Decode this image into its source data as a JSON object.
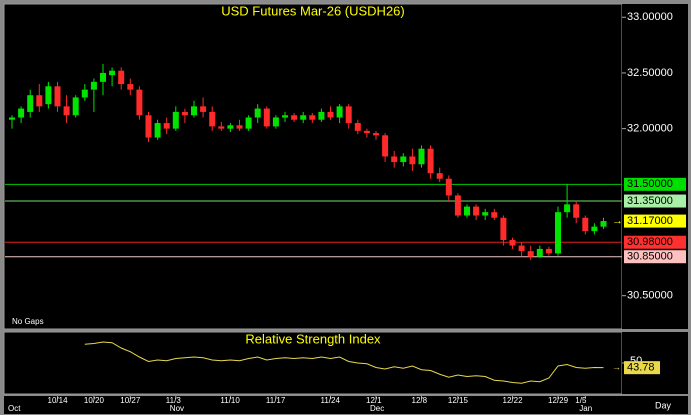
{
  "chart_data": {
    "type": "candlestick",
    "title": "USD Futures Mar-26 (USDH26)",
    "note": "No Gaps",
    "period": "Day",
    "categories": [
      null,
      null,
      null,
      null,
      null,
      "10/14",
      null,
      null,
      null,
      "10/20",
      null,
      null,
      null,
      "10/27",
      null,
      null,
      null,
      null,
      "11/3",
      null,
      null,
      null,
      null,
      null,
      "11/10",
      null,
      null,
      null,
      null,
      "11/17",
      null,
      null,
      null,
      null,
      null,
      "11/24",
      null,
      null,
      null,
      null,
      "12/1",
      null,
      null,
      null,
      null,
      "12/8",
      null,
      null,
      null,
      "12/15",
      null,
      null,
      null,
      null,
      null,
      "12/22",
      null,
      null,
      null,
      null,
      "12/29",
      null,
      null,
      "1/5",
      null,
      null
    ],
    "months": [
      "Oct",
      null,
      null,
      null,
      null,
      null,
      null,
      null,
      null,
      null,
      null,
      null,
      null,
      null,
      null,
      null,
      null,
      null,
      "Nov",
      null,
      null,
      null,
      null,
      null,
      null,
      null,
      null,
      null,
      null,
      null,
      null,
      null,
      null,
      null,
      null,
      null,
      null,
      null,
      null,
      null,
      "Dec",
      null,
      null,
      null,
      null,
      null,
      null,
      null,
      null,
      null,
      null,
      null,
      null,
      null,
      null,
      null,
      null,
      null,
      null,
      null,
      null,
      null,
      null,
      "Jan",
      null,
      null
    ],
    "open": [
      32.08,
      32.1,
      32.15,
      32.3,
      32.22,
      32.38,
      32.2,
      32.12,
      32.28,
      32.35,
      32.42,
      32.48,
      32.52,
      32.4,
      32.35,
      32.12,
      31.92,
      32.05,
      32.0,
      32.15,
      32.12,
      32.2,
      32.15,
      32.02,
      32.0,
      32.03,
      32.0,
      32.1,
      32.18,
      32.02,
      32.1,
      32.12,
      32.08,
      32.12,
      32.08,
      32.15,
      32.1,
      32.2,
      32.05,
      31.98,
      31.96,
      31.94,
      31.75,
      31.7,
      31.75,
      31.68,
      31.82,
      31.6,
      31.55,
      31.4,
      31.22,
      31.3,
      31.22,
      31.25,
      31.2,
      31.0,
      30.95,
      30.9,
      30.85,
      30.92,
      30.88,
      31.25,
      31.32,
      31.2,
      31.08,
      31.12
    ],
    "high": [
      32.12,
      32.2,
      32.35,
      32.4,
      32.42,
      32.42,
      32.3,
      32.3,
      32.4,
      32.45,
      32.58,
      32.55,
      32.55,
      32.45,
      32.38,
      32.15,
      32.08,
      32.1,
      32.2,
      32.18,
      32.25,
      32.28,
      32.2,
      32.06,
      32.05,
      32.08,
      32.12,
      32.22,
      32.2,
      32.12,
      32.15,
      32.14,
      32.15,
      32.14,
      32.18,
      32.2,
      32.22,
      32.22,
      32.08,
      32.0,
      31.98,
      31.96,
      31.8,
      31.78,
      31.82,
      31.85,
      31.85,
      31.65,
      31.58,
      31.42,
      31.32,
      31.32,
      31.28,
      31.28,
      31.22,
      31.02,
      30.98,
      30.95,
      30.95,
      30.94,
      31.3,
      31.5,
      31.35,
      31.22,
      31.15,
      31.2
    ],
    "low": [
      32.0,
      32.05,
      32.1,
      32.15,
      32.18,
      32.15,
      32.05,
      32.1,
      32.25,
      32.15,
      32.3,
      32.38,
      32.35,
      32.3,
      32.08,
      31.88,
      31.9,
      31.95,
      31.98,
      32.05,
      32.1,
      32.1,
      31.98,
      31.98,
      31.97,
      31.98,
      31.98,
      32.05,
      32.0,
      32.0,
      32.06,
      32.06,
      32.05,
      32.05,
      32.06,
      32.08,
      32.05,
      32.0,
      31.95,
      31.92,
      31.9,
      31.7,
      31.65,
      31.66,
      31.62,
      31.65,
      31.55,
      31.52,
      31.35,
      31.2,
      31.2,
      31.18,
      31.18,
      31.18,
      30.95,
      30.92,
      30.85,
      30.82,
      30.84,
      30.86,
      30.86,
      31.2,
      31.15,
      31.05,
      31.05,
      31.1
    ],
    "close": [
      32.1,
      32.18,
      32.3,
      32.2,
      32.38,
      32.2,
      32.12,
      32.28,
      32.35,
      32.42,
      32.5,
      32.52,
      32.4,
      32.35,
      32.12,
      31.92,
      32.05,
      32.0,
      32.15,
      32.12,
      32.2,
      32.15,
      32.02,
      32.0,
      32.03,
      32.0,
      32.1,
      32.18,
      32.02,
      32.1,
      32.12,
      32.08,
      32.12,
      32.08,
      32.15,
      32.1,
      32.2,
      32.05,
      31.98,
      31.96,
      31.94,
      31.75,
      31.7,
      31.75,
      31.68,
      31.82,
      31.6,
      31.55,
      31.4,
      31.22,
      31.3,
      31.22,
      31.25,
      31.2,
      31.0,
      30.95,
      30.9,
      30.85,
      30.92,
      30.88,
      31.25,
      31.32,
      31.2,
      31.08,
      31.12,
      31.17
    ],
    "up_color": "#00e400",
    "down_color": "#ff2a2a",
    "ylim": [
      30.21,
      33.11
    ],
    "yticks": [
      {
        "value": 33,
        "label": "33.00000"
      },
      {
        "value": 32.5,
        "label": "32.50000"
      },
      {
        "value": 32,
        "label": "32.00000"
      },
      {
        "value": 30.5,
        "label": "30.50000"
      }
    ],
    "levels": [
      {
        "value": 31.5,
        "label": "31.50000",
        "color": "#00c800",
        "label_color": "#00e000"
      },
      {
        "value": 31.35,
        "label": "31.35000",
        "color": "#6fe06f",
        "label_color": "#a8f0a8"
      },
      {
        "value": 30.98,
        "label": "30.98000",
        "color": "#e02020",
        "label_color": "#ff3030"
      },
      {
        "value": 30.85,
        "label": "30.85000",
        "color": "#f0c8c8",
        "label_color": "#ffc0c0"
      }
    ],
    "last_price": {
      "value": 31.17,
      "label": "31.17000",
      "color": "#ffff00"
    },
    "rsi": {
      "title": "Relative Strength Index",
      "color": "#e8d84a",
      "ylim": [
        10,
        90
      ],
      "yticks": [
        50
      ],
      "values": [
        null,
        null,
        null,
        null,
        null,
        null,
        null,
        null,
        75,
        76,
        78,
        77,
        70,
        65,
        58,
        52,
        54,
        53,
        56,
        57,
        58,
        57,
        54,
        53,
        54,
        53,
        56,
        58,
        54,
        56,
        57,
        56,
        57,
        56,
        58,
        56,
        58,
        52,
        50,
        49,
        44,
        42,
        45,
        43,
        46,
        41,
        40,
        35,
        31,
        34,
        32,
        33,
        32,
        27,
        26,
        24,
        23,
        26,
        25,
        30,
        46,
        48,
        44,
        43,
        44,
        43.78
      ],
      "last_label": "43.78"
    }
  }
}
